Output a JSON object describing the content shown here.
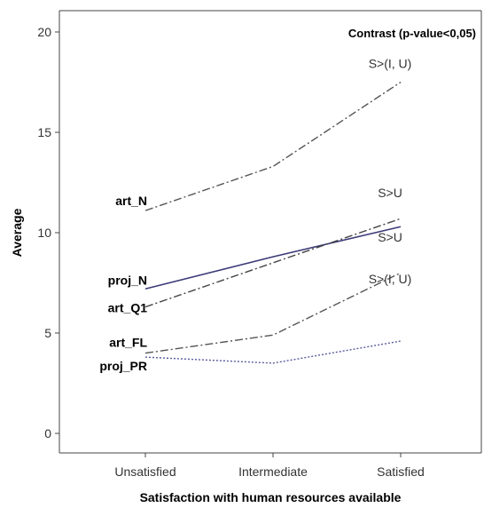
{
  "chart_data": {
    "type": "line",
    "title": "",
    "legend_title": "Contrast (p-value<0,05)",
    "xlabel": "Satisfaction with human resources available",
    "ylabel": "Average",
    "categories": [
      "Unsatisfied",
      "Intermediate",
      "Satisfied"
    ],
    "ylim": [
      -1,
      21
    ],
    "yticks": [
      0,
      5,
      10,
      15,
      20
    ],
    "grid": false,
    "series": [
      {
        "name": "art_N",
        "values": [
          11.1,
          13.3,
          17.5
        ],
        "style": "dashdot",
        "color": "#555555"
      },
      {
        "name": "proj_N",
        "values": [
          7.2,
          8.8,
          10.3
        ],
        "style": "solid",
        "color": "#3a3a78"
      },
      {
        "name": "art_Q1",
        "values": [
          6.3,
          8.5,
          10.7
        ],
        "style": "dashdot",
        "color": "#444444"
      },
      {
        "name": "art_FL",
        "values": [
          4.0,
          4.9,
          8.0
        ],
        "style": "dashdot",
        "color": "#555555"
      },
      {
        "name": "proj_PR",
        "values": [
          3.8,
          3.5,
          4.6
        ],
        "style": "dotted",
        "color": "#5a5aa0"
      }
    ],
    "annotations": [
      {
        "text": "S>(I, U)",
        "series": "art_N"
      },
      {
        "text": "S>U",
        "series": "art_Q1"
      },
      {
        "text": "S>U",
        "series": "proj_N"
      },
      {
        "text": "S>(I, U)",
        "series": "art_FL"
      }
    ]
  }
}
